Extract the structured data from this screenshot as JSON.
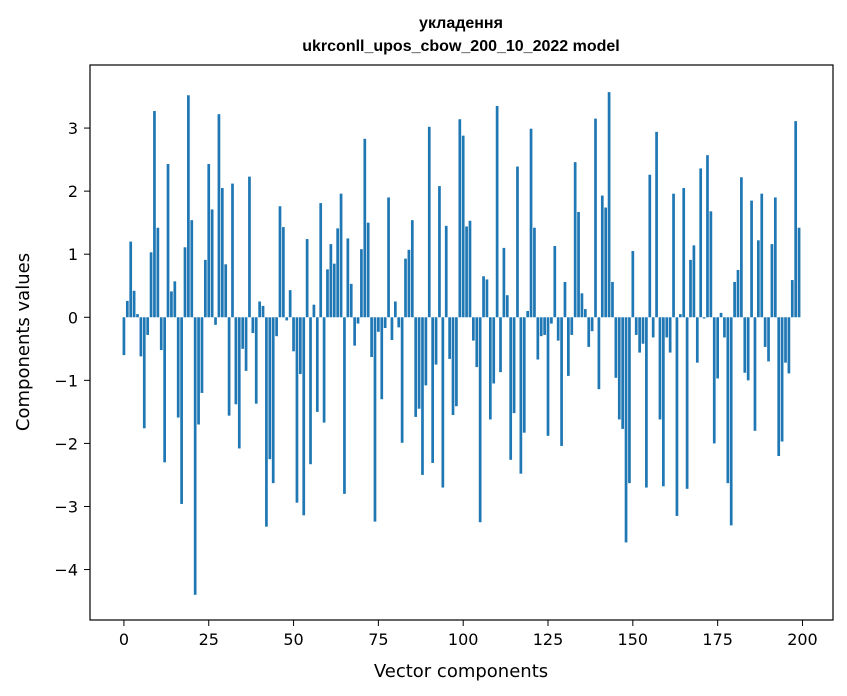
{
  "chart_data": {
    "type": "bar",
    "title": "укладення",
    "subtitle": "ukrconll_upos_cbow_200_10_2022 model",
    "xlabel": "Vector components",
    "ylabel": "Components values",
    "xlim": [
      -10,
      209
    ],
    "ylim": [
      -4.8,
      4.0
    ],
    "xticks": [
      0,
      25,
      50,
      75,
      100,
      125,
      150,
      175,
      200
    ],
    "yticks": [
      -4,
      -3,
      -2,
      -1,
      0,
      1,
      2,
      3
    ],
    "ytick_labels": [
      "−4",
      "−3",
      "−2",
      "−1",
      "0",
      "1",
      "2",
      "3"
    ],
    "bar_color": "#1f77b4",
    "grid": false,
    "values": [
      -0.6,
      0.26,
      1.2,
      0.42,
      0.05,
      -0.62,
      -1.76,
      -0.28,
      1.03,
      3.27,
      1.42,
      -0.52,
      -2.3,
      2.43,
      0.41,
      0.57,
      -1.59,
      -2.96,
      1.11,
      3.52,
      1.54,
      -4.4,
      -1.7,
      -1.2,
      0.91,
      2.43,
      1.71,
      -0.12,
      3.22,
      2.05,
      0.84,
      -1.56,
      2.12,
      -1.38,
      -2.08,
      -0.5,
      -0.85,
      2.23,
      -0.25,
      -1.37,
      0.25,
      0.18,
      -3.32,
      -2.25,
      -2.63,
      -0.3,
      1.76,
      1.43,
      -0.05,
      0.43,
      -0.54,
      -2.94,
      -0.9,
      -3.14,
      1.24,
      -2.33,
      0.2,
      -1.5,
      1.81,
      -1.67,
      0.76,
      1.16,
      0.85,
      1.41,
      1.96,
      -2.8,
      1.25,
      0.53,
      -0.45,
      -0.1,
      1.08,
      2.83,
      1.5,
      -0.63,
      -3.24,
      -0.23,
      -1.3,
      -0.17,
      1.9,
      -0.36,
      0.25,
      -0.16,
      -1.99,
      0.93,
      1.07,
      1.54,
      -1.58,
      -1.45,
      -2.5,
      -1.08,
      3.02,
      -2.31,
      -0.75,
      2.08,
      -2.7,
      1.45,
      -0.66,
      -1.55,
      -1.41,
      3.14,
      2.88,
      1.44,
      1.53,
      -0.37,
      -0.79,
      -3.25,
      0.65,
      0.6,
      -1.62,
      -1.05,
      3.35,
      -0.87,
      1.1,
      0.35,
      -2.26,
      -1.52,
      2.39,
      -2.48,
      -1.83,
      0.1,
      2.99,
      1.42,
      -0.67,
      -0.3,
      -0.28,
      -1.88,
      -0.1,
      1.13,
      -0.37,
      -2.04,
      0.56,
      -0.93,
      -0.28,
      2.46,
      1.67,
      0.38,
      0.13,
      -0.47,
      -0.22,
      3.15,
      -1.14,
      1.93,
      1.74,
      3.57,
      0.56,
      -0.96,
      -1.62,
      -1.77,
      -3.57,
      -2.63,
      1.05,
      -0.28,
      -0.56,
      -0.42,
      -2.7,
      2.26,
      -0.32,
      2.94,
      -1.62,
      -2.68,
      -0.32,
      -0.56,
      1.96,
      -3.15,
      0.05,
      2.05,
      -2.72,
      0.91,
      1.14,
      -0.72,
      2.36,
      -0.02,
      2.57,
      1.68,
      -2.0,
      -0.97,
      0.07,
      -0.32,
      -2.63,
      -3.3,
      0.56,
      0.75,
      2.22,
      -0.88,
      -1.0,
      1.85,
      -1.8,
      1.22,
      1.96,
      -0.47,
      -0.7,
      1.16,
      1.9,
      -2.2,
      -1.97,
      -0.72,
      -0.89,
      0.59,
      3.11,
      1.42
    ]
  }
}
